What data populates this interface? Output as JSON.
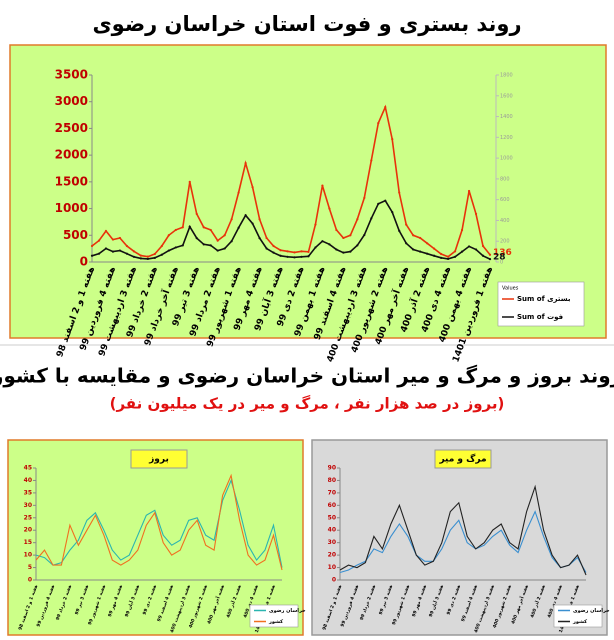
{
  "heading": "روند بروز و مرگ و میر استان خراسان رضوی و مقایسه با کشور",
  "subheading": "(بروز در صد هزار نفر ، مرگ و میر در یک میلیون نفر)",
  "chart_data": [
    {
      "type": "line",
      "title": "روند بستری و فوت استان خراسان رضوی",
      "background": "#ccff88",
      "border": "#e07a2a",
      "categories": [
        "هفته 1 و 2 اسفند 98",
        null,
        null,
        "هفته 4 فروردین 99",
        null,
        null,
        "هفته 3 اردیبهشت 99",
        null,
        null,
        "هفته 2 خرداد 99",
        null,
        null,
        "هفته آخر خرداد 99",
        null,
        null,
        "هفته 3 تیر 99",
        null,
        null,
        "هفته 2 مرداد 99",
        null,
        null,
        "هفته 1 شهریور 99",
        null,
        null,
        "هفته 4 مهر 99",
        null,
        null,
        "هفته 3 آبان 99",
        null,
        null,
        "هفته 2 دی 99",
        null,
        null,
        "هفته 1 بهمن 99",
        null,
        null,
        "هفته 4 اسفند 99",
        null,
        null,
        "هفته 3 اردیبهشت 400",
        null,
        null,
        "هفته 2 شهریور 400",
        null,
        null,
        "هفته آخر مهر 400",
        null,
        null,
        "هفته 2 آذر 400",
        null,
        null,
        "هفته 4 دی 400",
        null,
        null,
        "هفته 4 بهمن 400",
        null,
        null,
        "هفته 1 فروردین 1401"
      ],
      "series": [
        {
          "name": "Sum of بستری",
          "color": "#e8320a",
          "marker": true,
          "values": [
            300,
            400,
            580,
            420,
            450,
            300,
            200,
            120,
            100,
            150,
            300,
            500,
            600,
            650,
            1500,
            900,
            650,
            600,
            400,
            500,
            800,
            1300,
            1850,
            1400,
            800,
            450,
            300,
            220,
            200,
            180,
            200,
            190,
            700,
            1430,
            1000,
            600,
            450,
            500,
            800,
            1200,
            1900,
            2600,
            2900,
            2300,
            1300,
            700,
            500,
            450,
            350,
            250,
            150,
            100,
            200,
            600,
            1330,
            900,
            300,
            136
          ]
        },
        {
          "name": "Sum of فوت",
          "color": "#111111",
          "axis": "y2",
          "marker": true,
          "values": [
            60,
            80,
            130,
            100,
            110,
            80,
            50,
            35,
            30,
            40,
            70,
            110,
            140,
            160,
            340,
            230,
            170,
            160,
            110,
            130,
            200,
            330,
            450,
            370,
            230,
            130,
            90,
            60,
            50,
            45,
            50,
            55,
            140,
            200,
            170,
            120,
            90,
            100,
            160,
            260,
            420,
            560,
            590,
            480,
            300,
            180,
            120,
            100,
            80,
            60,
            40,
            30,
            50,
            100,
            150,
            120,
            60,
            28
          ]
        }
      ],
      "data_labels": "last",
      "legend_title": "Values",
      "ylim": [
        0,
        3500
      ],
      "yticks": [
        0,
        500,
        1000,
        1500,
        2000,
        2500,
        3000,
        3500
      ],
      "y2lim": [
        0,
        1800
      ],
      "y2ticks": [
        0,
        200,
        400,
        600,
        800,
        1000,
        1200,
        1400,
        1600,
        1800
      ]
    },
    {
      "type": "line",
      "title": "بروز",
      "background": "#ccff88",
      "border": "#e07a2a",
      "categories": [
        "هفته 1 و 2 اسفند 98",
        null,
        "هفته 4 فروردین 99",
        null,
        "هفته 2 خرداد 99",
        null,
        "هفته 3 تیر 99",
        null,
        "هفته 1 شهریور 99",
        null,
        "هفته 4 مهر 99",
        null,
        "هفته 3 آبان 99",
        null,
        "هفته 2 دی 99",
        null,
        "هفته 4 اسفند 99",
        null,
        "هفته 3 اردیبهشت 400",
        null,
        "هفته 2 شهریور 400",
        null,
        "هفته آخر مهر 400",
        null,
        "هفته 2 آذر 400",
        null,
        "هفته 4 دی 400",
        null,
        "هفته 1 فروردین 1401",
        null
      ],
      "series": [
        {
          "name": "خراسان رضوی",
          "color": "#2bb5b0",
          "values": [
            10,
            9,
            6,
            7,
            12,
            16,
            24,
            27,
            20,
            12,
            8,
            10,
            18,
            26,
            28,
            18,
            14,
            16,
            24,
            25,
            18,
            16,
            32,
            40,
            28,
            14,
            8,
            12,
            22,
            5
          ]
        },
        {
          "name": "کشور",
          "color": "#f07020",
          "values": [
            8,
            12,
            6,
            6,
            22,
            14,
            20,
            26,
            18,
            8,
            6,
            8,
            12,
            22,
            27,
            15,
            10,
            12,
            20,
            24,
            14,
            12,
            34,
            42,
            24,
            10,
            6,
            8,
            18,
            4
          ]
        }
      ],
      "ylim": [
        0,
        45
      ],
      "yticks": [
        0,
        5,
        10,
        15,
        20,
        25,
        30,
        35,
        40,
        45
      ]
    },
    {
      "type": "line",
      "title": "مرگ و میر",
      "background": "#d9d9d9",
      "border": "#999999",
      "categories": [
        "هفته 1 و 2 اسفند 98",
        null,
        "هفته 4 فروردین 99",
        null,
        "هفته 2 خرداد 99",
        null,
        "هفته 3 تیر 99",
        null,
        "هفته 1 شهریور 99",
        null,
        "هفته 4 مهر 99",
        null,
        "هفته 3 آبان 99",
        null,
        "هفته 2 دی 99",
        null,
        "هفته 4 اسفند 99",
        null,
        "هفته 3 اردیبهشت 400",
        null,
        "هفته 2 شهریور 400",
        null,
        "هفته آخر مهر 400",
        null,
        "هفته 2 آذر 400",
        null,
        "هفته 4 دی 400",
        null,
        "هفته 1 فروردین 1401",
        null
      ],
      "series": [
        {
          "name": "خراسان رضوی",
          "color": "#3a8fd0",
          "values": [
            6,
            8,
            12,
            15,
            25,
            22,
            35,
            45,
            35,
            20,
            15,
            15,
            25,
            40,
            48,
            30,
            25,
            28,
            35,
            40,
            28,
            22,
            40,
            55,
            35,
            18,
            10,
            12,
            18,
            6
          ]
        },
        {
          "name": "کشور",
          "color": "#222222",
          "values": [
            8,
            12,
            10,
            14,
            35,
            25,
            45,
            60,
            40,
            20,
            12,
            15,
            30,
            55,
            62,
            35,
            25,
            30,
            40,
            45,
            30,
            25,
            55,
            75,
            40,
            20,
            10,
            12,
            20,
            4
          ]
        }
      ],
      "ylim": [
        0,
        90
      ],
      "yticks": [
        0,
        10,
        20,
        30,
        40,
        50,
        60,
        70,
        80,
        90
      ]
    }
  ]
}
